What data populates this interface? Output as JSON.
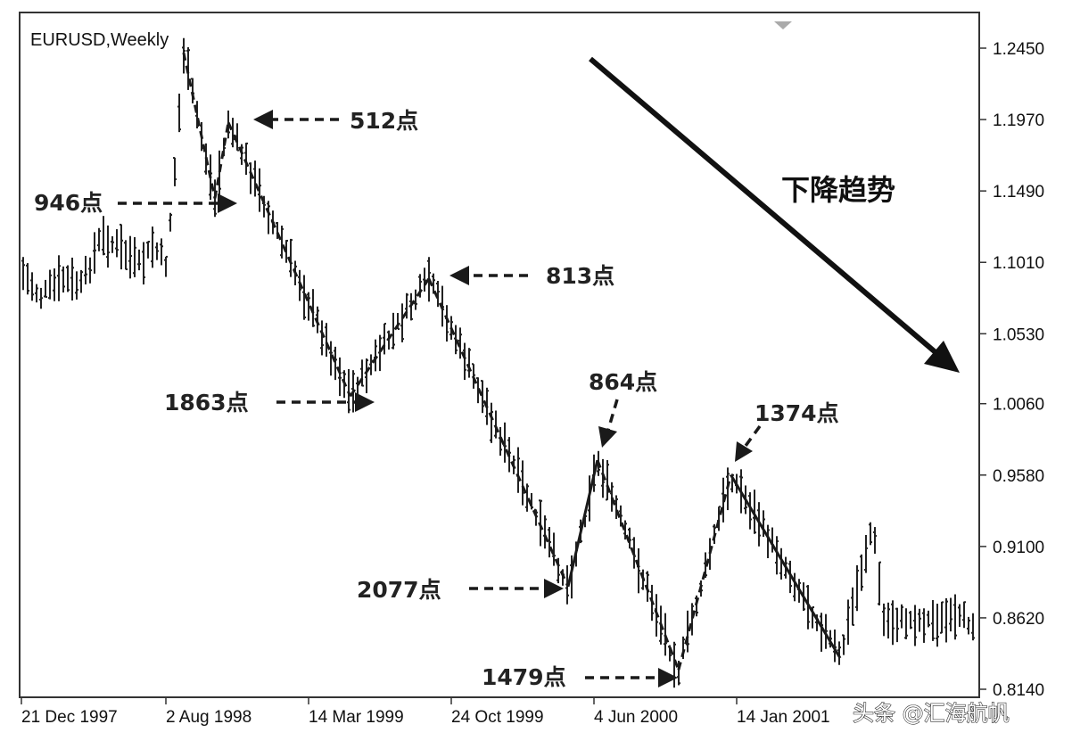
{
  "chart_data": {
    "type": "ohlc-bar",
    "title": "EURUSD,Weekly",
    "y_axis": {
      "ticks": [
        "1.2450",
        "1.1970",
        "1.1490",
        "1.1010",
        "1.0530",
        "1.0060",
        "0.9580",
        "0.9100",
        "0.8620",
        "0.8140"
      ],
      "range": [
        0.814,
        1.245
      ],
      "position": "right"
    },
    "x_axis": {
      "ticks": [
        "21 Dec 1997",
        "2 Aug 1998",
        "14 Mar 1999",
        "24 Oct 1999",
        "4 Jun 2000",
        "14 Jan 2001"
      ],
      "range": [
        "1997-12-21",
        "2001-09-02"
      ]
    },
    "annotations": [
      {
        "label": "946点",
        "points": "946"
      },
      {
        "label": "512点",
        "points": "512"
      },
      {
        "label": "813点",
        "points": "813"
      },
      {
        "label": "1863点",
        "points": "1863"
      },
      {
        "label": "864点",
        "points": "864"
      },
      {
        "label": "1374点",
        "points": "1374"
      },
      {
        "label": "2077点",
        "points": "2077"
      },
      {
        "label": "1479点",
        "points": "1479"
      }
    ],
    "trend_label": "下降趋势",
    "swing_points": [
      {
        "date": "1998-09-01",
        "price": 1.242
      },
      {
        "date": "1998-10-20",
        "price": 1.144
      },
      {
        "date": "1998-11-10",
        "price": 1.195
      },
      {
        "date": "1999-05-20",
        "price": 1.011
      },
      {
        "date": "1999-09-20",
        "price": 1.09
      },
      {
        "date": "2000-04-25",
        "price": 0.883
      },
      {
        "date": "2000-06-10",
        "price": 0.968
      },
      {
        "date": "2000-10-15",
        "price": 0.827
      },
      {
        "date": "2001-01-05",
        "price": 0.958
      },
      {
        "date": "2001-06-25",
        "price": 0.835
      }
    ],
    "path_after_swings": [
      {
        "date": "2001-08-15",
        "price": 0.925
      },
      {
        "date": "2001-09-01",
        "price": 0.86
      }
    ],
    "grid": false,
    "legend": "none"
  },
  "watermark": "头条 @汇海航帆"
}
